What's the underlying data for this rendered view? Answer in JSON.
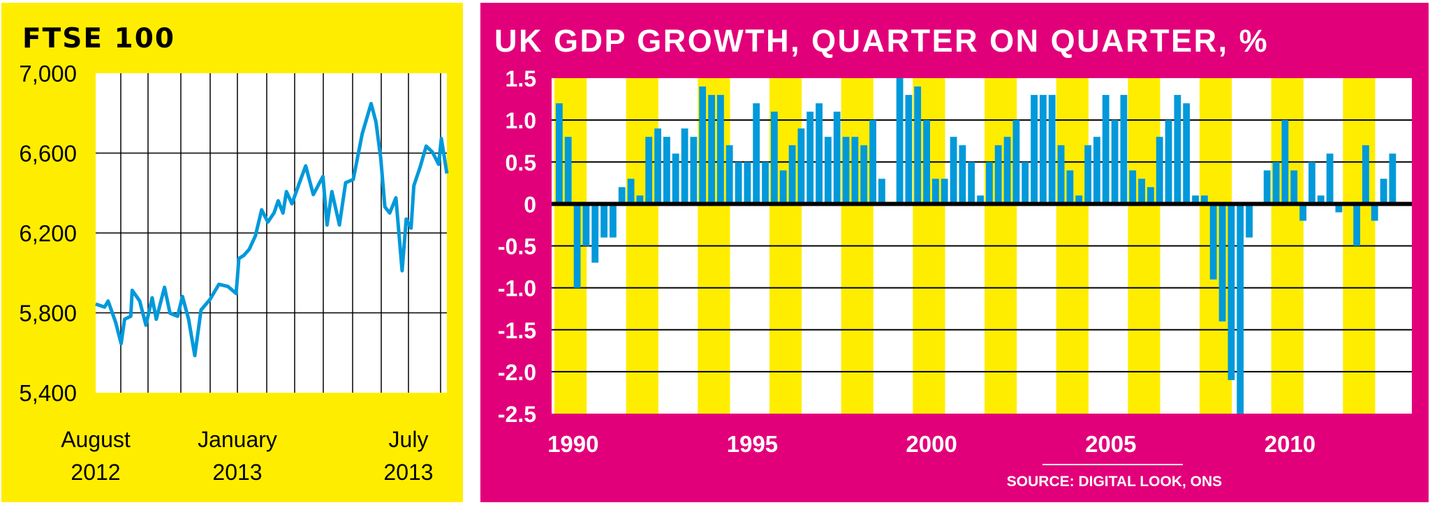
{
  "colors": {
    "yellow": "#FFED00",
    "pink": "#E2007A",
    "blue": "#0099DA",
    "white": "#FFFFFF",
    "black": "#000000"
  },
  "chart_data": [
    {
      "type": "line",
      "title": "FTSE 100",
      "xlabel": "",
      "ylabel": "",
      "ylim": [
        5400,
        7000
      ],
      "yticks": [
        5400,
        5800,
        6200,
        6600,
        7000
      ],
      "ytick_labels": [
        "5,400",
        "5,800",
        "6,200",
        "6,600",
        "7,000"
      ],
      "xtick_labels": [
        {
          "line1": "August",
          "line2": "2012"
        },
        {
          "line1": "January",
          "line2": "2013"
        },
        {
          "line1": "July",
          "line2": "2013"
        }
      ],
      "x_unit": "weeks since start of August 2012",
      "xlim": [
        0,
        51
      ],
      "grid": true,
      "series": [
        {
          "name": "FTSE 100",
          "points": [
            [
              0,
              5844
            ],
            [
              1.3,
              5829
            ],
            [
              1.8,
              5859
            ],
            [
              2.9,
              5753
            ],
            [
              3.7,
              5646
            ],
            [
              4.2,
              5768
            ],
            [
              5.1,
              5783
            ],
            [
              5.3,
              5913
            ],
            [
              6.4,
              5859
            ],
            [
              7.3,
              5738
            ],
            [
              8.2,
              5875
            ],
            [
              8.8,
              5768
            ],
            [
              10.0,
              5928
            ],
            [
              10.8,
              5798
            ],
            [
              11.9,
              5783
            ],
            [
              12.6,
              5882
            ],
            [
              13.5,
              5768
            ],
            [
              14.4,
              5586
            ],
            [
              15.3,
              5814
            ],
            [
              16.6,
              5867
            ],
            [
              17.9,
              5943
            ],
            [
              19.2,
              5932
            ],
            [
              20.4,
              5897
            ],
            [
              20.8,
              6072
            ],
            [
              21.5,
              6087
            ],
            [
              22.3,
              6118
            ],
            [
              23.2,
              6186
            ],
            [
              24.1,
              6316
            ],
            [
              25.0,
              6255
            ],
            [
              25.9,
              6300
            ],
            [
              26.5,
              6361
            ],
            [
              27.2,
              6300
            ],
            [
              27.7,
              6407
            ],
            [
              28.5,
              6346
            ],
            [
              29.6,
              6452
            ],
            [
              30.5,
              6536
            ],
            [
              31.6,
              6392
            ],
            [
              33.0,
              6483
            ],
            [
              33.6,
              6240
            ],
            [
              34.3,
              6407
            ],
            [
              35.4,
              6240
            ],
            [
              36.3,
              6452
            ],
            [
              37.4,
              6468
            ],
            [
              38.7,
              6696
            ],
            [
              39.6,
              6802
            ],
            [
              40.0,
              6848
            ],
            [
              40.7,
              6757
            ],
            [
              41.4,
              6574
            ],
            [
              42.0,
              6331
            ],
            [
              42.7,
              6300
            ],
            [
              43.6,
              6376
            ],
            [
              44.5,
              6011
            ],
            [
              45.1,
              6270
            ],
            [
              45.8,
              6224
            ],
            [
              46.2,
              6437
            ],
            [
              47.1,
              6528
            ],
            [
              48.0,
              6635
            ],
            [
              48.9,
              6605
            ],
            [
              49.8,
              6544
            ],
            [
              50.2,
              6673
            ],
            [
              51.0,
              6498
            ]
          ]
        }
      ]
    },
    {
      "type": "bar",
      "title": "UK GDP GROWTH, QUARTER ON QUARTER, %",
      "xlabel": "",
      "ylabel": "",
      "ylim": [
        -2.5,
        1.5
      ],
      "yticks": [
        1.5,
        1.0,
        0.5,
        0,
        -0.5,
        -1.0,
        -1.5,
        -2.0,
        -2.5
      ],
      "ytick_labels": [
        "1.5",
        "1.0",
        "0.5",
        "0",
        "-0.5",
        "-1.0",
        "-1.5",
        "-2.0",
        "-2.5"
      ],
      "start_year": 1990,
      "xtick_labels": [
        "1990",
        "1995",
        "2000",
        "2005",
        "2010"
      ],
      "grid": true,
      "source": "SOURCE: DIGITAL LOOK, ONS",
      "quarterly_values": [
        1.2,
        0.8,
        -1.0,
        -0.5,
        -0.7,
        -0.4,
        -0.4,
        0.2,
        0.3,
        0.1,
        0.8,
        0.9,
        0.8,
        0.6,
        0.9,
        0.8,
        1.4,
        1.3,
        1.3,
        0.7,
        0.5,
        0.5,
        1.2,
        0.5,
        1.1,
        0.4,
        0.7,
        0.9,
        1.1,
        1.2,
        0.8,
        1.1,
        0.8,
        0.8,
        0.7,
        1.0,
        0.3,
        0.0,
        1.5,
        1.3,
        1.4,
        1.0,
        0.3,
        0.3,
        0.8,
        0.7,
        0.5,
        0.1,
        0.5,
        0.7,
        0.8,
        1.0,
        0.5,
        1.3,
        1.3,
        1.3,
        0.7,
        0.4,
        0.1,
        0.7,
        0.8,
        1.3,
        1.0,
        1.3,
        0.4,
        0.3,
        0.2,
        0.8,
        1.0,
        1.3,
        1.2,
        0.1,
        0.1,
        -0.9,
        -1.4,
        -2.1,
        -2.5,
        -0.4,
        0.0,
        0.4,
        0.5,
        1.0,
        0.4,
        -0.2,
        0.5,
        0.1,
        0.6,
        -0.1,
        0.0,
        -0.5,
        0.7,
        -0.2,
        0.3,
        0.6
      ]
    }
  ]
}
